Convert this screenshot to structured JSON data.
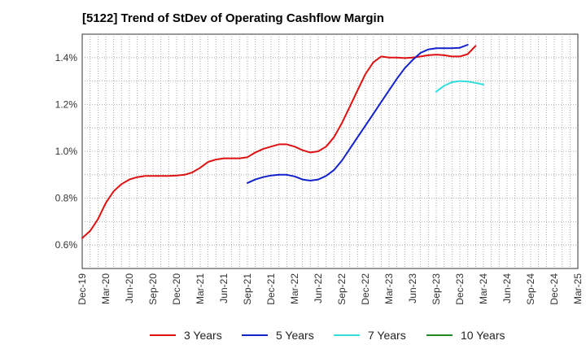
{
  "chart_data": {
    "type": "line",
    "title": "[5122]  Trend of StDev of Operating Cashflow Margin",
    "xlabel": "",
    "ylabel": "",
    "x_tick_labels": [
      "Dec-19",
      "Mar-20",
      "Jun-20",
      "Sep-20",
      "Dec-20",
      "Mar-21",
      "Jun-21",
      "Sep-21",
      "Dec-21",
      "Mar-22",
      "Jun-22",
      "Sep-22",
      "Dec-22",
      "Mar-23",
      "Jun-23",
      "Sep-23",
      "Dec-23",
      "Mar-24",
      "Jun-24",
      "Sep-24",
      "Dec-24",
      "Mar-25"
    ],
    "y_tick_labels": [
      "0.6%",
      "0.8%",
      "1.0%",
      "1.2%",
      "1.4%"
    ],
    "y_ticks": [
      0.6,
      0.8,
      1.0,
      1.2,
      1.4
    ],
    "ylim": [
      0.5,
      1.5
    ],
    "grid": true,
    "legend_position": "bottom",
    "series": [
      {
        "name": "3 Years",
        "color": "#dd1111",
        "start": "Dec-19",
        "values": [
          0.63,
          0.66,
          0.71,
          0.78,
          0.83,
          0.86,
          0.88,
          0.89,
          0.895,
          0.895,
          0.895,
          0.895,
          0.897,
          0.9,
          0.91,
          0.93,
          0.955,
          0.965,
          0.97,
          0.97,
          0.97,
          0.975,
          0.995,
          1.01,
          1.02,
          1.03,
          1.03,
          1.02,
          1.005,
          0.995,
          1.0,
          1.02,
          1.06,
          1.12,
          1.19,
          1.26,
          1.33,
          1.38,
          1.405,
          1.4,
          1.4,
          1.398,
          1.4,
          1.405,
          1.41,
          1.413,
          1.41,
          1.405,
          1.405,
          1.415,
          1.45
        ]
      },
      {
        "name": "5 Years",
        "color": "#1122cc",
        "start": "Sep-21",
        "values": [
          0.865,
          0.88,
          0.89,
          0.897,
          0.9,
          0.9,
          0.893,
          0.88,
          0.875,
          0.88,
          0.895,
          0.92,
          0.96,
          1.01,
          1.06,
          1.11,
          1.16,
          1.21,
          1.26,
          1.31,
          1.355,
          1.39,
          1.42,
          1.435,
          1.44,
          1.44,
          1.44,
          1.442,
          1.455
        ]
      },
      {
        "name": "7 Years",
        "color": "#33dddd",
        "start": "Sep-23",
        "values": [
          1.255,
          1.28,
          1.295,
          1.3,
          1.298,
          1.292,
          1.285
        ]
      },
      {
        "name": "10 Years",
        "color": "#228822",
        "start": "Sep-23",
        "values": []
      }
    ]
  }
}
